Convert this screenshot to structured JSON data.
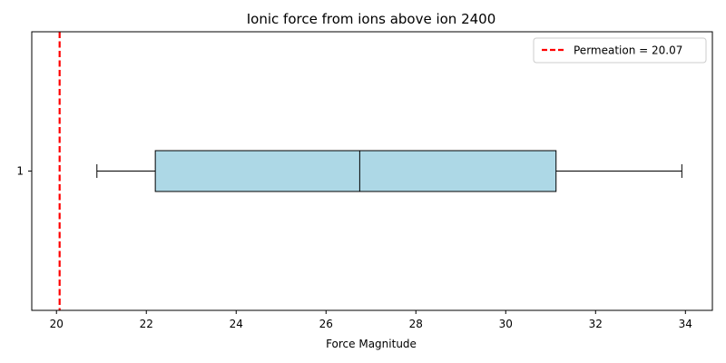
{
  "chart_data": {
    "type": "boxplot",
    "orientation": "horizontal",
    "title": "Ionic force from ions above ion 2400",
    "xlabel": "Force Magnitude",
    "ylabel": "",
    "xlim": [
      19.45,
      34.6
    ],
    "xticks": [
      20,
      22,
      24,
      26,
      28,
      30,
      32,
      34
    ],
    "categories": [
      "1"
    ],
    "boxes": [
      {
        "category": "1",
        "whisker_low": 20.9,
        "q1": 22.2,
        "median": 26.75,
        "q3": 31.12,
        "whisker_high": 33.92
      }
    ],
    "box_fill_color": "#add8e6",
    "reference_line": {
      "label": "Permeation = 20.07",
      "value": 20.07,
      "color": "#ff0000",
      "style": "dashed"
    },
    "legend_position": "top-right",
    "grid": false
  }
}
